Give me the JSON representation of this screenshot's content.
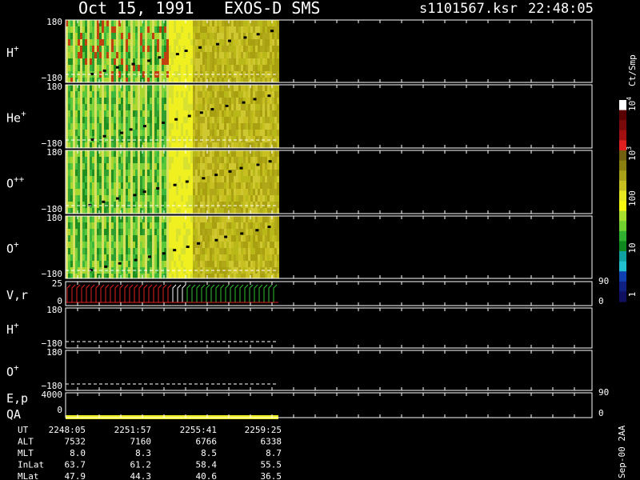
{
  "header": {
    "date": "Oct 15, 1991",
    "instrument": "EXOS-D SMS",
    "file": "s1101567.ksr",
    "time": "22:48:05"
  },
  "panels": [
    {
      "label": "H",
      "sup": "+",
      "top": "180",
      "bottom": "−180"
    },
    {
      "label": "He",
      "sup": "+",
      "top": "180",
      "bottom": "−180"
    },
    {
      "label": "O",
      "sup": "++",
      "top": "180",
      "bottom": "−180"
    },
    {
      "label": "O",
      "sup": "+",
      "top": "180",
      "bottom": "−180"
    },
    {
      "label": "V,r",
      "top": "25",
      "bottom": "0",
      "right_top": "90",
      "right_bottom": "0"
    },
    {
      "label": "H",
      "sup": "+",
      "top": "180",
      "bottom": "−180"
    },
    {
      "label": "O",
      "sup": "+",
      "top": "180",
      "bottom": "−180"
    },
    {
      "label": "E,p",
      "label2": "QA",
      "top": "4000",
      "bottom": "0",
      "right_top": "90",
      "right_bottom": "0"
    }
  ],
  "colorbar": {
    "unit": "Ct/Smp",
    "ticks": [
      {
        "base": "10",
        "exp": "4"
      },
      {
        "base": "10",
        "exp": "3"
      },
      {
        "base": "100"
      },
      {
        "base": "10"
      },
      {
        "base": "1"
      }
    ]
  },
  "footer": {
    "rows": [
      [
        "UT",
        "2248:05",
        "2251:57",
        "2255:41",
        "2259:25"
      ],
      [
        "ALT",
        "7532",
        "7160",
        "6766",
        "6338"
      ],
      [
        "MLT",
        "8.0",
        "8.3",
        "8.5",
        "8.7"
      ],
      [
        "InLat",
        "63.7",
        "61.2",
        "58.4",
        "55.5"
      ],
      [
        "MLat",
        "47.9",
        "44.3",
        "40.6",
        "36.5"
      ]
    ]
  },
  "stamp": "Sep-00 2AA"
}
